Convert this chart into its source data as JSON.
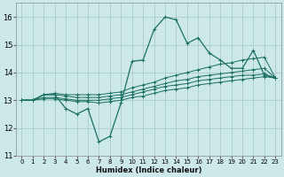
{
  "xlabel": "Humidex (Indice chaleur)",
  "bg_color": "#cce8e8",
  "grid_color": "#aacccc",
  "line_color": "#1a7060",
  "xlim": [
    -0.5,
    23.5
  ],
  "ylim": [
    11.0,
    16.5
  ],
  "xticks": [
    0,
    1,
    2,
    3,
    4,
    5,
    6,
    7,
    8,
    9,
    10,
    11,
    12,
    13,
    14,
    15,
    16,
    17,
    18,
    19,
    20,
    21,
    22,
    23
  ],
  "yticks": [
    11,
    12,
    13,
    14,
    15,
    16
  ],
  "series": [
    [
      13.0,
      13.0,
      13.2,
      13.2,
      12.7,
      12.5,
      12.7,
      11.5,
      11.7,
      12.9,
      14.4,
      14.45,
      15.55,
      16.0,
      15.9,
      15.05,
      15.25,
      14.7,
      14.45,
      14.15,
      14.15,
      14.8,
      13.9,
      13.8
    ],
    [
      13.0,
      13.0,
      13.2,
      13.25,
      13.2,
      13.2,
      13.2,
      13.2,
      13.25,
      13.3,
      13.45,
      13.55,
      13.65,
      13.8,
      13.9,
      14.0,
      14.1,
      14.2,
      14.3,
      14.35,
      14.45,
      14.5,
      14.55,
      13.8
    ],
    [
      13.0,
      13.0,
      13.2,
      13.2,
      13.15,
      13.1,
      13.1,
      13.1,
      13.15,
      13.2,
      13.3,
      13.4,
      13.5,
      13.6,
      13.7,
      13.75,
      13.85,
      13.9,
      13.95,
      14.0,
      14.05,
      14.1,
      14.15,
      13.8
    ],
    [
      13.0,
      13.0,
      13.1,
      13.1,
      13.05,
      13.0,
      13.0,
      13.0,
      13.05,
      13.1,
      13.2,
      13.3,
      13.4,
      13.5,
      13.55,
      13.6,
      13.7,
      13.75,
      13.8,
      13.85,
      13.9,
      13.9,
      13.95,
      13.8
    ],
    [
      13.0,
      13.0,
      13.05,
      13.05,
      13.0,
      12.95,
      12.95,
      12.9,
      12.95,
      13.0,
      13.1,
      13.15,
      13.25,
      13.35,
      13.4,
      13.45,
      13.55,
      13.6,
      13.65,
      13.7,
      13.75,
      13.8,
      13.85,
      13.8
    ]
  ]
}
